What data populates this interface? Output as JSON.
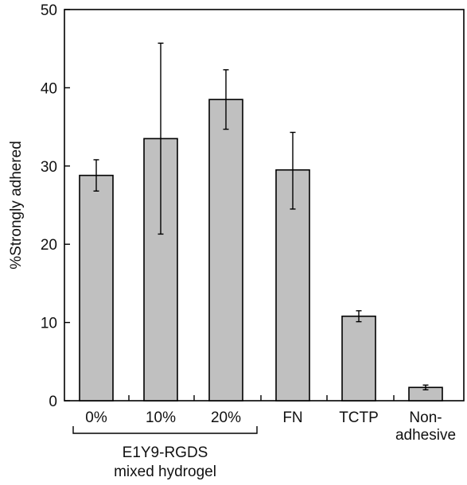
{
  "chart_data": {
    "type": "bar",
    "title": "",
    "xlabel": "",
    "ylabel": "%Strongly adhered",
    "ylim": [
      0,
      50
    ],
    "yticks": [
      0,
      10,
      20,
      30,
      40,
      50
    ],
    "grid": false,
    "categories": [
      "0%",
      "10%",
      "20%",
      "FN",
      "TCTP",
      "Non-\nadhesive"
    ],
    "values": [
      28.8,
      33.5,
      38.5,
      29.5,
      10.8,
      1.7
    ],
    "error_low": [
      26.8,
      21.3,
      34.7,
      24.5,
      10.1,
      1.4
    ],
    "error_high": [
      30.8,
      45.7,
      42.3,
      34.3,
      11.5,
      2.0
    ],
    "bar_color": "#c0c0c0",
    "edge_color": "#000000",
    "group_labels": [
      {
        "text": "E1Y9-RGDS\nmixed hydrogel",
        "categories": [
          0,
          1,
          2
        ]
      }
    ]
  }
}
